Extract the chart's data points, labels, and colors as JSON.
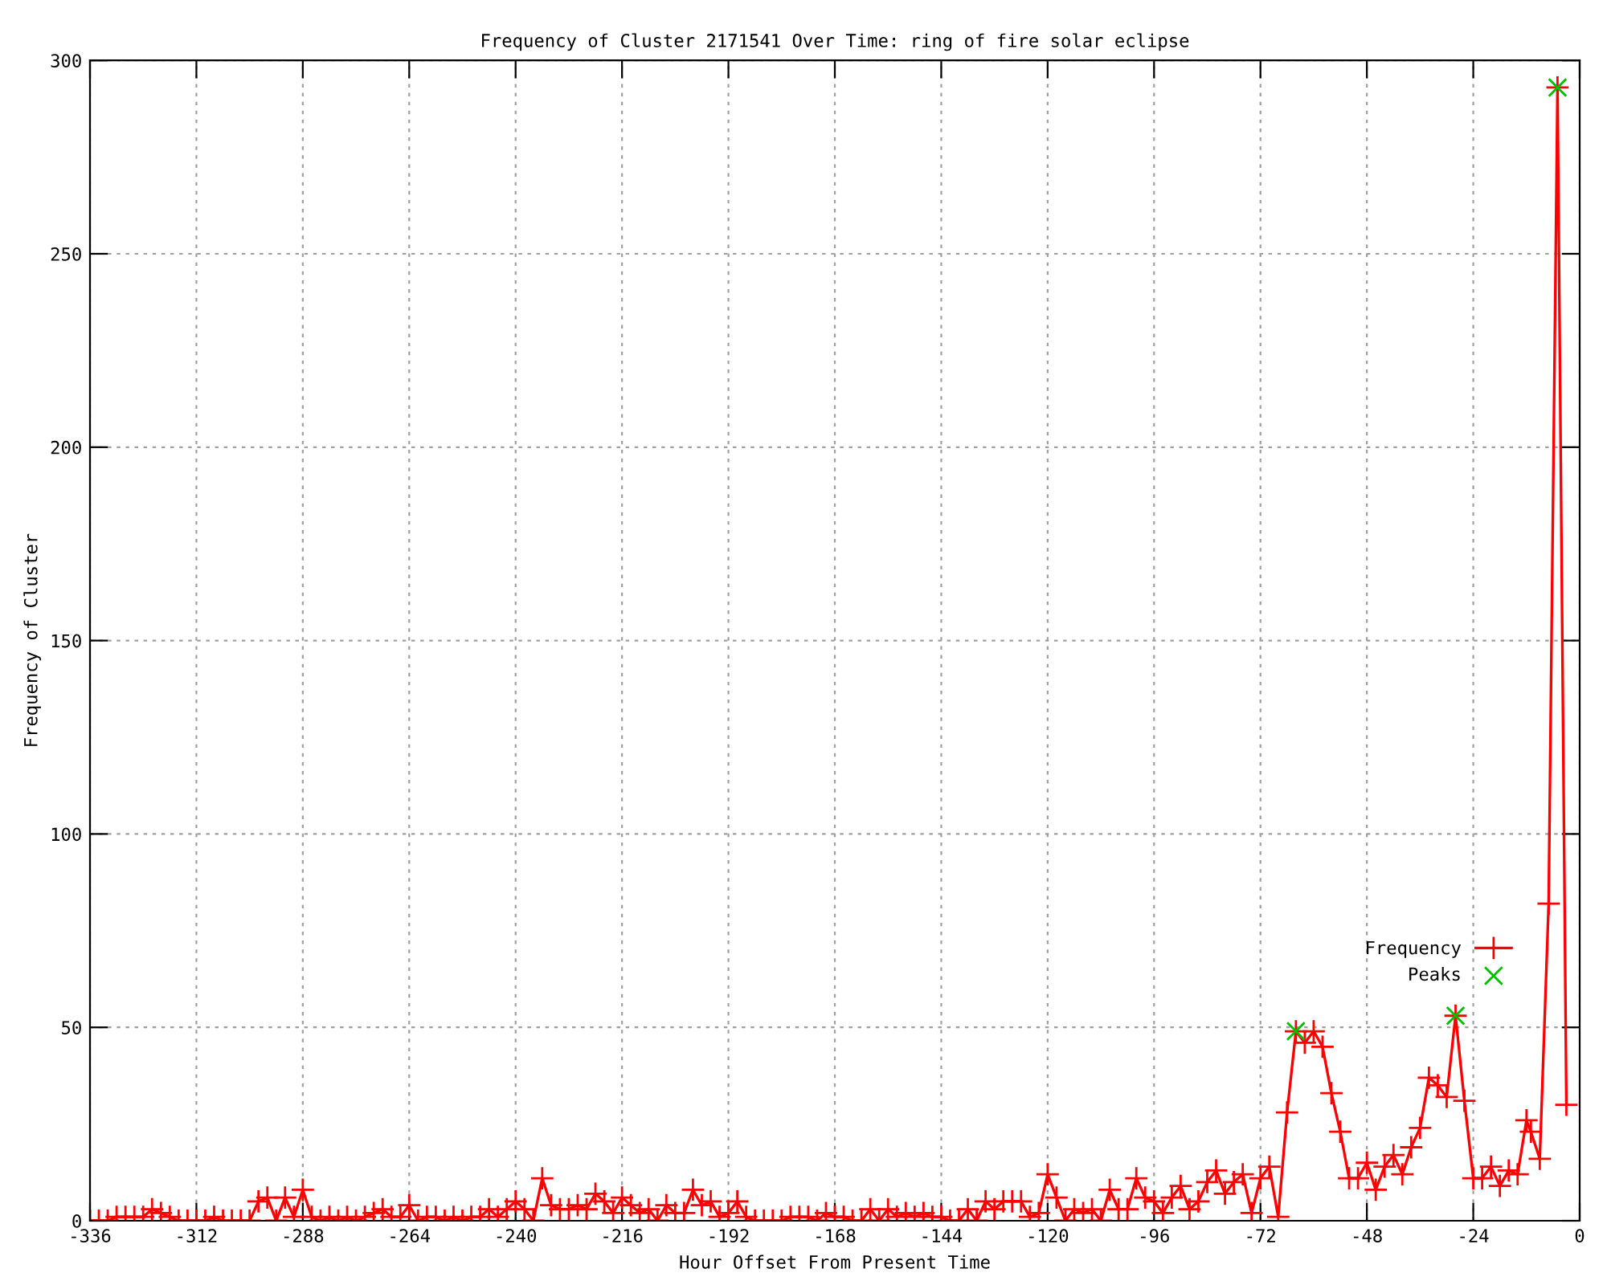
{
  "chart_data": {
    "type": "line",
    "title": "Frequency of Cluster 2171541 Over Time: ring of fire solar eclipse",
    "xlabel": "Hour Offset From Present Time",
    "ylabel": "Frequency of Cluster",
    "series": [
      {
        "name": "Frequency",
        "color": "#ff0000",
        "marker": "cross",
        "x": [
          -336,
          -334,
          -332,
          -330,
          -328,
          -326,
          -324,
          -322,
          -320,
          -318,
          -316,
          -314,
          -312,
          -310,
          -308,
          -306,
          -304,
          -302,
          -300,
          -298,
          -296,
          -294,
          -292,
          -290,
          -288,
          -286,
          -284,
          -282,
          -280,
          -278,
          -276,
          -274,
          -272,
          -270,
          -268,
          -266,
          -264,
          -262,
          -260,
          -258,
          -256,
          -254,
          -252,
          -250,
          -248,
          -246,
          -244,
          -242,
          -240,
          -238,
          -236,
          -234,
          -232,
          -230,
          -228,
          -226,
          -224,
          -222,
          -220,
          -218,
          -216,
          -214,
          -212,
          -210,
          -208,
          -206,
          -204,
          -202,
          -200,
          -198,
          -196,
          -194,
          -192,
          -190,
          -188,
          -186,
          -184,
          -182,
          -180,
          -178,
          -176,
          -174,
          -172,
          -170,
          -168,
          -166,
          -164,
          -162,
          -160,
          -158,
          -156,
          -154,
          -152,
          -150,
          -148,
          -146,
          -144,
          -142,
          -140,
          -138,
          -136,
          -134,
          -132,
          -130,
          -128,
          -126,
          -124,
          -122,
          -120,
          -118,
          -116,
          -114,
          -112,
          -110,
          -108,
          -106,
          -104,
          -102,
          -100,
          -98,
          -96,
          -94,
          -92,
          -90,
          -88,
          -86,
          -84,
          -82,
          -80,
          -78,
          -76,
          -74,
          -72,
          -70,
          -68,
          -66,
          -64,
          -62,
          -60,
          -58,
          -56,
          -54,
          -52,
          -50,
          -48,
          -46,
          -44,
          -42,
          -40,
          -38,
          -36,
          -34,
          -32,
          -30,
          -28,
          -26,
          -24,
          -22,
          -20,
          -18,
          -16,
          -14,
          -12,
          -11,
          -9,
          -7,
          -5,
          -3
        ],
        "values": [
          0,
          0,
          0,
          1,
          1,
          1,
          1,
          3,
          2,
          1,
          0,
          0,
          0,
          0,
          1,
          0,
          0,
          0,
          0,
          5,
          6,
          0,
          6,
          1,
          8,
          1,
          0,
          1,
          0,
          1,
          0,
          1,
          2,
          3,
          1,
          1,
          4,
          0,
          1,
          1,
          0,
          1,
          0,
          1,
          1,
          3,
          1,
          3,
          5,
          3,
          0,
          11,
          4,
          3,
          3,
          4,
          3,
          7,
          5,
          2,
          6,
          4,
          2,
          3,
          0,
          4,
          2,
          2,
          8,
          4,
          5,
          1,
          2,
          5,
          1,
          0,
          0,
          0,
          0,
          1,
          1,
          1,
          0,
          2,
          1,
          1,
          0,
          0,
          3,
          0,
          3,
          1,
          2,
          1,
          2,
          1,
          1,
          0,
          0,
          3,
          0,
          5,
          3,
          5,
          5,
          5,
          1,
          2,
          12,
          6,
          0,
          3,
          2,
          3,
          0,
          8,
          3,
          3,
          11,
          6,
          5,
          2,
          6,
          9,
          3,
          5,
          10,
          13,
          7,
          10,
          12,
          2,
          11,
          14,
          1,
          28,
          49,
          46,
          49,
          45,
          33,
          23,
          11,
          11,
          15,
          8,
          14,
          17,
          12,
          19,
          24,
          37,
          35,
          32,
          53,
          31,
          11,
          11,
          14,
          9,
          13,
          12,
          26,
          23,
          16,
          82,
          293,
          30
        ]
      },
      {
        "name": "Peaks",
        "type": "scatter",
        "color": "#00c000",
        "marker": "cross",
        "x": [
          -64,
          -28,
          -5
        ],
        "values": [
          49,
          53,
          293
        ]
      }
    ],
    "xlim": [
      -336,
      0
    ],
    "xticks": [
      -336,
      -312,
      -288,
      -264,
      -240,
      -216,
      -192,
      -168,
      -144,
      -120,
      -96,
      -72,
      -48,
      -24,
      0
    ],
    "ylim": [
      0,
      300
    ],
    "yticks": [
      0,
      50,
      100,
      150,
      200,
      250,
      300
    ],
    "grid": true,
    "legend": "bottom right",
    "line_style": "solid"
  }
}
